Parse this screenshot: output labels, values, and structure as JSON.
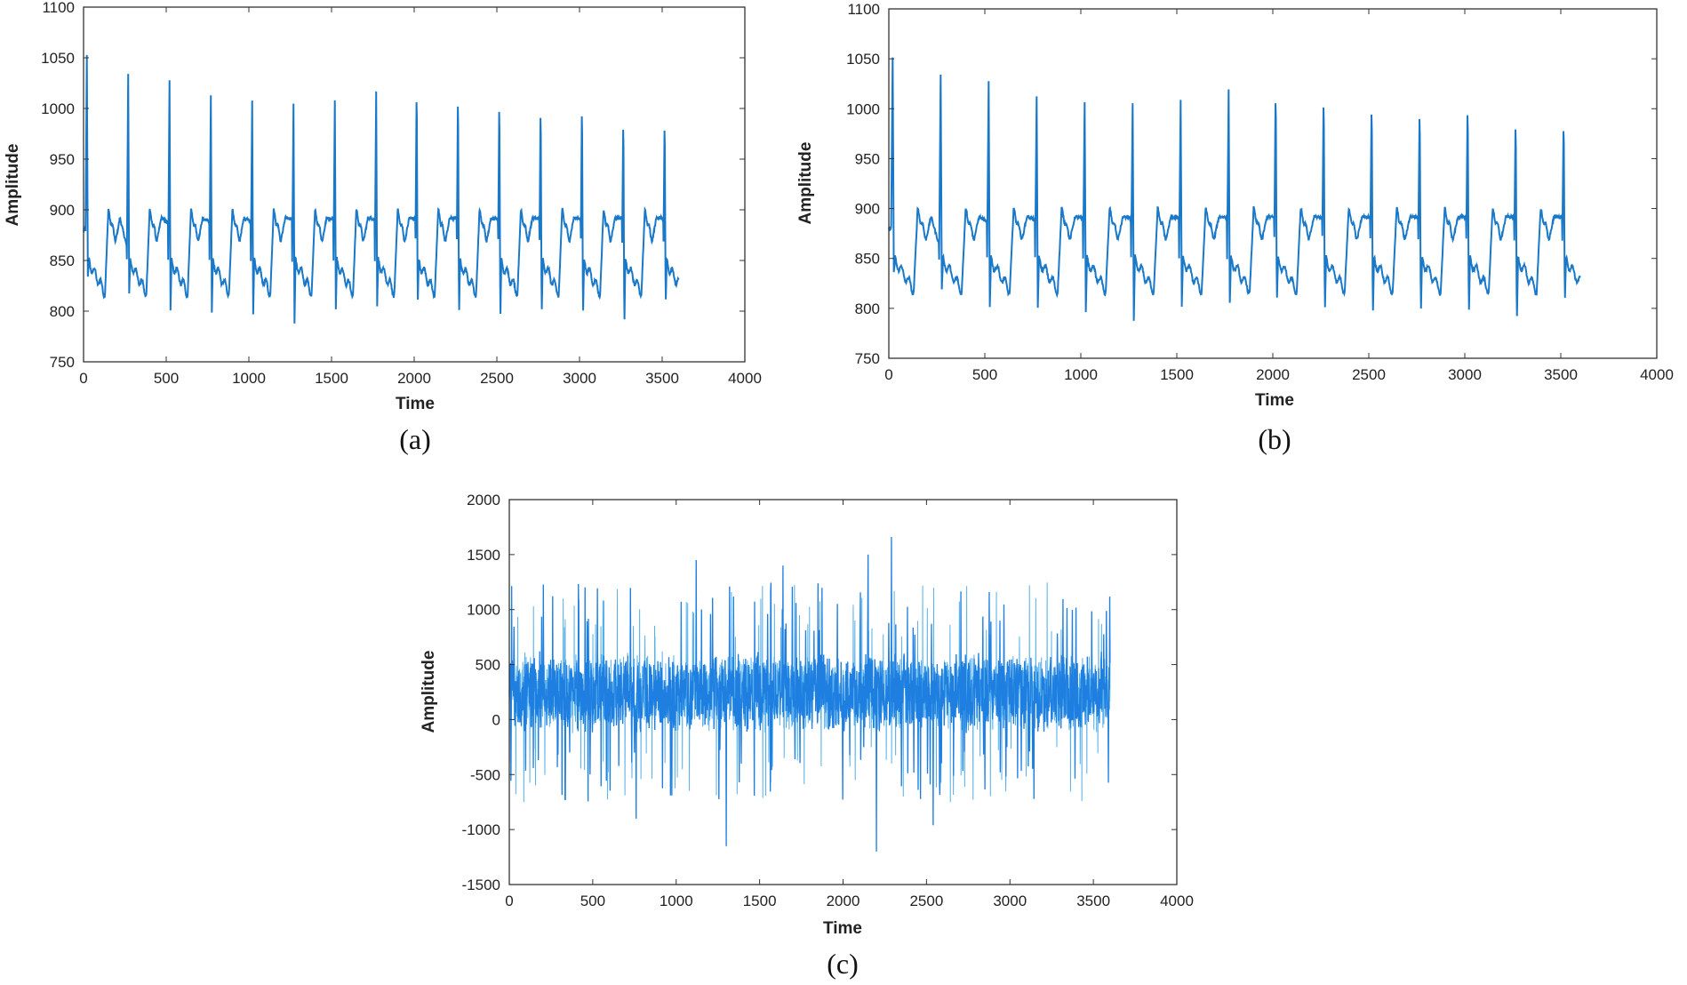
{
  "chart_data": [
    {
      "type": "line",
      "caption": "(a)",
      "xlabel": "Time",
      "ylabel": "Amplitude",
      "xlim": [
        0,
        4000
      ],
      "ylim": [
        750,
        1100
      ],
      "xticks": [
        "0",
        "500",
        "1000",
        "1500",
        "2000",
        "2500",
        "3000",
        "3500",
        "4000"
      ],
      "yticks": [
        "750",
        "800",
        "850",
        "900",
        "950",
        "1000",
        "1050",
        "1100"
      ],
      "grid": false,
      "color": "#1a78c8",
      "x_end": 3600,
      "r_peaks": {
        "x": [
          20,
          270,
          520,
          770,
          1020,
          1270,
          1520,
          1770,
          2015,
          2265,
          2515,
          2765,
          3015,
          3265,
          3515
        ],
        "y": [
          1052,
          1035,
          1027,
          1013,
          1008,
          1005,
          1008,
          1018,
          1028,
          1022,
          1016,
          1010,
          1013,
          999,
          997
        ]
      },
      "s_troughs": [
        835,
        818,
        802,
        800,
        796,
        788,
        803,
        806,
        803,
        793,
        789,
        792,
        790,
        782,
        803
      ]
    },
    {
      "type": "line",
      "caption": "(b)",
      "xlabel": "Time",
      "ylabel": "Amplitude",
      "xlim": [
        0,
        4000
      ],
      "ylim": [
        750,
        1100
      ],
      "xticks": [
        "0",
        "500",
        "1000",
        "1500",
        "2000",
        "2500",
        "3000",
        "3500",
        "4000"
      ],
      "yticks": [
        "750",
        "800",
        "850",
        "900",
        "950",
        "1000",
        "1050",
        "1100"
      ],
      "grid": false,
      "color": "#1a78c8",
      "x_end": 3600,
      "r_peaks": {
        "x": [
          20,
          270,
          520,
          770,
          1020,
          1270,
          1520,
          1770,
          2015,
          2265,
          2515,
          2765,
          3015,
          3265,
          3515
        ],
        "y": [
          1052,
          1035,
          1027,
          1013,
          1008,
          1005,
          1008,
          1018,
          1028,
          1022,
          1016,
          1010,
          1013,
          999,
          997
        ]
      },
      "s_troughs": [
        835,
        818,
        802,
        800,
        796,
        788,
        803,
        806,
        803,
        793,
        789,
        792,
        790,
        782,
        803
      ]
    },
    {
      "type": "line",
      "caption": "(c)",
      "xlabel": "Time",
      "ylabel": "Amplitude",
      "xlim": [
        0,
        4000
      ],
      "ylim": [
        -1500,
        2000
      ],
      "xticks": [
        "0",
        "500",
        "1000",
        "1500",
        "2000",
        "2500",
        "3000",
        "3500",
        "4000"
      ],
      "yticks": [
        "-1500",
        "-1000",
        "-500",
        "0",
        "500",
        "1000",
        "1500",
        "2000"
      ],
      "grid": false,
      "color": "#1f7fe0",
      "x_end": 3600,
      "typical_range": [
        -500,
        1000
      ],
      "notable_peaks": {
        "x": [
          1120,
          1640,
          2150,
          2290,
          760,
          1300,
          2200,
          2540
        ],
        "y": [
          1450,
          1400,
          1500,
          1660,
          -900,
          -1150,
          -1200,
          -960
        ]
      }
    }
  ]
}
